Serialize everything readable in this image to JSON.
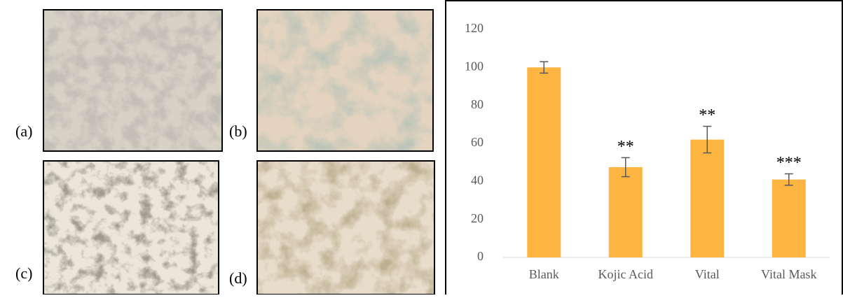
{
  "panels": [
    "(a)",
    "(b)",
    "(c)",
    "(d)"
  ],
  "chart_data": {
    "type": "bar",
    "categories": [
      "Blank",
      "Kojic Acid",
      "Vital",
      "Vital Mask"
    ],
    "values": [
      100,
      47.5,
      62,
      41
    ],
    "errors": [
      3,
      5,
      7,
      3
    ],
    "annotations": [
      null,
      "**",
      "**",
      "***"
    ],
    "color": "#fbb540",
    "error_color": "#595959",
    "ylim": [
      0,
      120
    ],
    "yticks": [
      0,
      20,
      40,
      60,
      80,
      100,
      120
    ],
    "grid": false
  }
}
